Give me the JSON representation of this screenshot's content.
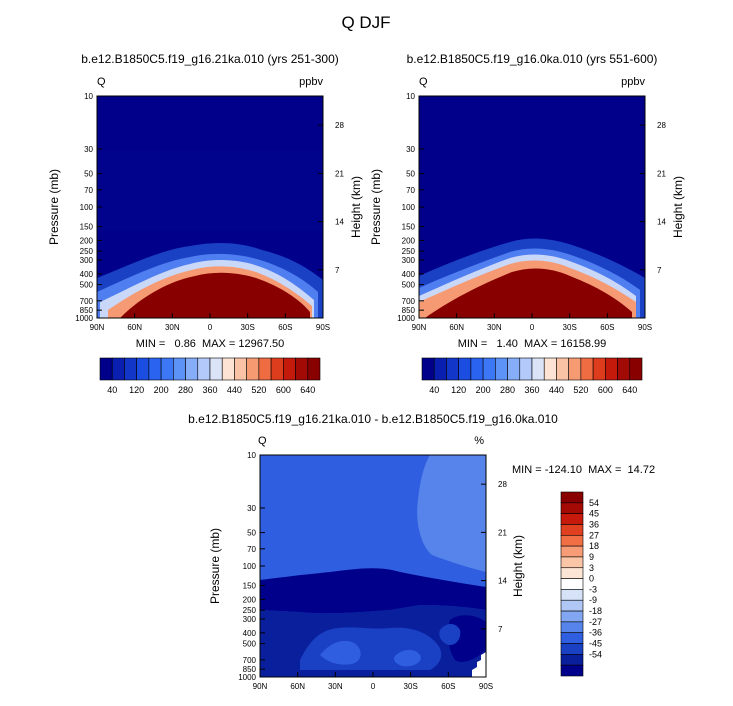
{
  "page": {
    "title": "Q DJF",
    "variable_label": "Q"
  },
  "panels": [
    {
      "title": "b.e12.B1850C5.f19_g16.21ka.010 (yrs 251-300)",
      "units": "ppbv",
      "stats": "MIN =   0.86  MAX = 12967.50",
      "ylabel_left": "Pressure (mb)",
      "ylabel_right": "Height (km)"
    },
    {
      "title": "b.e12.B1850C5.f19_g16.0ka.010 (yrs 551-600)",
      "units": "ppbv",
      "stats": "MIN =   1.40  MAX = 16158.99",
      "ylabel_left": "Pressure (mb)",
      "ylabel_right": "Height (km)"
    },
    {
      "title": "b.e12.B1850C5.f19_g16.21ka.010 - b.e12.B1850C5.f19_g16.0ka.010",
      "units": "%",
      "stats": "MIN = -124.10  MAX =  14.72",
      "ylabel_left": "Pressure (mb)",
      "ylabel_right": "Height (km)"
    }
  ],
  "chart_data": [
    {
      "type": "heatmap",
      "title": "b.e12.B1850C5.f19_g16.21ka.010 (yrs 251-300)",
      "xlabel": "",
      "ylabel": "Pressure (mb)",
      "ylabel_right": "Height (km)",
      "x_ticks": [
        "90N",
        "60N",
        "30N",
        "0",
        "30S",
        "60S",
        "90S"
      ],
      "x_values": [
        90,
        60,
        30,
        0,
        -30,
        -60,
        -90
      ],
      "y_ticks": [
        10,
        30,
        50,
        70,
        100,
        150,
        200,
        250,
        300,
        400,
        500,
        700,
        850,
        1000
      ],
      "y_range": [
        10,
        1000
      ],
      "height_ticks_km": [
        28,
        21,
        14,
        7
      ],
      "tropopause_pressure_profile_mb": [
        [
          90,
          430
        ],
        [
          60,
          320
        ],
        [
          30,
          250
        ],
        [
          0,
          245
        ],
        [
          -30,
          270
        ],
        [
          -60,
          330
        ],
        [
          -90,
          430
        ]
      ],
      "contour_levels": [
        40,
        80,
        120,
        160,
        200,
        240,
        280,
        320,
        360,
        400,
        440,
        480,
        520,
        560,
        600,
        640
      ],
      "min": 0.86,
      "max": 12967.5,
      "units": "ppbv"
    },
    {
      "type": "heatmap",
      "title": "b.e12.B1850C5.f19_g16.0ka.010 (yrs 551-600)",
      "xlabel": "",
      "ylabel": "Pressure (mb)",
      "ylabel_right": "Height (km)",
      "x_ticks": [
        "90N",
        "60N",
        "30N",
        "0",
        "30S",
        "60S",
        "90S"
      ],
      "x_values": [
        90,
        60,
        30,
        0,
        -30,
        -60,
        -90
      ],
      "y_ticks": [
        10,
        30,
        50,
        70,
        100,
        150,
        200,
        250,
        300,
        400,
        500,
        700,
        850,
        1000
      ],
      "y_range": [
        10,
        1000
      ],
      "height_ticks_km": [
        28,
        21,
        14,
        7
      ],
      "tropopause_pressure_profile_mb": [
        [
          90,
          440
        ],
        [
          60,
          330
        ],
        [
          30,
          240
        ],
        [
          0,
          210
        ],
        [
          -30,
          240
        ],
        [
          -60,
          320
        ],
        [
          -90,
          440
        ]
      ],
      "contour_levels": [
        40,
        80,
        120,
        160,
        200,
        240,
        280,
        320,
        360,
        400,
        440,
        480,
        520,
        560,
        600,
        640
      ],
      "min": 1.4,
      "max": 16158.99,
      "units": "ppbv"
    },
    {
      "type": "heatmap",
      "title": "b.e12.B1850C5.f19_g16.21ka.010 - b.e12.B1850C5.f19_g16.0ka.010",
      "xlabel": "",
      "ylabel": "Pressure (mb)",
      "ylabel_right": "Height (km)",
      "x_ticks": [
        "90N",
        "60N",
        "30N",
        "0",
        "30S",
        "60S",
        "90S"
      ],
      "x_values": [
        90,
        60,
        30,
        0,
        -30,
        -60,
        -90
      ],
      "y_ticks": [
        10,
        30,
        50,
        70,
        100,
        150,
        200,
        250,
        300,
        400,
        500,
        700,
        850,
        1000
      ],
      "y_range": [
        10,
        1000
      ],
      "height_ticks_km": [
        28,
        21,
        14,
        7
      ],
      "contour_levels": [
        -54,
        -45,
        -36,
        -27,
        -18,
        -9,
        -3,
        0,
        3,
        9,
        18,
        27,
        36,
        45,
        54
      ],
      "min": -124.1,
      "max": 14.72,
      "units": "%"
    }
  ],
  "colorbar_seq": {
    "labels": [
      "40",
      "120",
      "200",
      "280",
      "360",
      "440",
      "520",
      "600",
      "640"
    ],
    "colors": [
      "#00008b",
      "#0a1fb0",
      "#1236c8",
      "#1a4de0",
      "#2a63ef",
      "#3c78f5",
      "#5d92f7",
      "#86adf8",
      "#b3c9f9",
      "#dbe3f7",
      "#fde3d3",
      "#fbc3a5",
      "#f69a72",
      "#ef6c43",
      "#de3d1d",
      "#c41a0c",
      "#a20a05",
      "#880000"
    ]
  },
  "colorbar_div": {
    "labels": [
      "54",
      "45",
      "36",
      "27",
      "18",
      "9",
      "3",
      "0",
      "-3",
      "-9",
      "-18",
      "-27",
      "-36",
      "-45",
      "-54"
    ],
    "colors": [
      "#880000",
      "#a50a05",
      "#c71a0c",
      "#e0401f",
      "#f26e45",
      "#f89c77",
      "#fbc6a8",
      "#fde5d6",
      "#ffffff",
      "#d6e2f7",
      "#b0c6f5",
      "#82a6f1",
      "#5684ea",
      "#2f5fe0",
      "#1a40c4",
      "#0a1f9c",
      "#00008b"
    ]
  }
}
